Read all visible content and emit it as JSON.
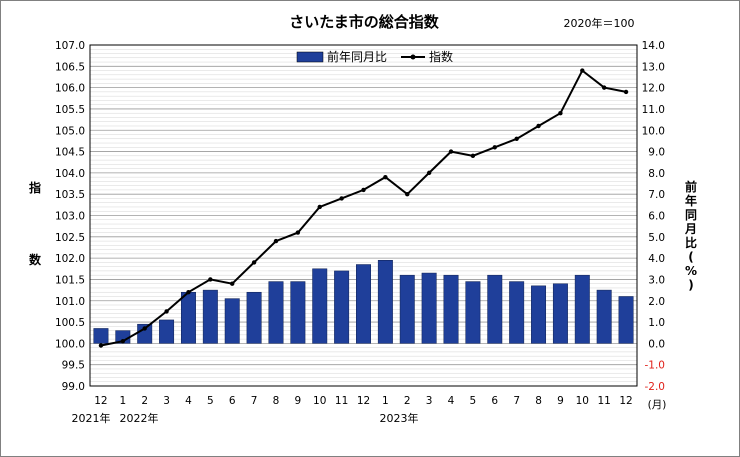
{
  "chart_data": {
    "type": "bar+line",
    "title": "さいたま市の総合指数",
    "base_note": "2020年＝100",
    "months": [
      "12",
      "1",
      "2",
      "3",
      "4",
      "5",
      "6",
      "7",
      "8",
      "9",
      "10",
      "11",
      "12",
      "1",
      "2",
      "3",
      "4",
      "5",
      "6",
      "7",
      "8",
      "9",
      "10",
      "11",
      "12"
    ],
    "x_unit": "(月)",
    "year_labels": [
      "2021年",
      "2022年",
      "2023年"
    ],
    "left_axis": {
      "label_chars": [
        "指",
        "数"
      ],
      "min": 99.0,
      "max": 107.0,
      "step": 0.5,
      "ticks": [
        "99.0",
        "99.5",
        "100.0",
        "100.5",
        "101.0",
        "101.5",
        "102.0",
        "102.5",
        "103.0",
        "103.5",
        "104.0",
        "104.5",
        "105.0",
        "105.5",
        "106.0",
        "106.5",
        "107.0"
      ]
    },
    "right_axis": {
      "label_chars": [
        "前",
        "年",
        "同",
        "月",
        "比",
        "(",
        "%",
        ")"
      ],
      "min": -2.0,
      "max": 14.0,
      "step": 1.0,
      "ticks": [
        "-2.0",
        "-1.0",
        "0.0",
        "1.0",
        "2.0",
        "3.0",
        "4.0",
        "5.0",
        "6.0",
        "7.0",
        "8.0",
        "9.0",
        "10.0",
        "11.0",
        "12.0",
        "13.0",
        "14.0"
      ]
    },
    "series": [
      {
        "name": "前年同月比",
        "type": "bar",
        "axis": "right",
        "color": "#1f3f9a",
        "values": [
          0.7,
          0.6,
          0.9,
          1.1,
          2.4,
          2.5,
          2.1,
          2.4,
          2.9,
          2.9,
          3.5,
          3.4,
          3.7,
          3.9,
          3.2,
          3.3,
          3.2,
          2.9,
          3.2,
          2.9,
          2.7,
          2.8,
          3.2,
          2.5,
          2.2
        ]
      },
      {
        "name": "指数",
        "type": "line",
        "axis": "left",
        "color": "#000000",
        "values": [
          99.95,
          100.05,
          100.35,
          100.75,
          101.2,
          101.5,
          101.4,
          101.9,
          102.4,
          102.6,
          103.2,
          103.4,
          103.6,
          103.9,
          103.5,
          104.0,
          104.5,
          104.4,
          104.6,
          104.8,
          105.1,
          105.4,
          106.4,
          106.0,
          105.9
        ]
      }
    ],
    "grid": true,
    "legend_position": "top-center"
  }
}
